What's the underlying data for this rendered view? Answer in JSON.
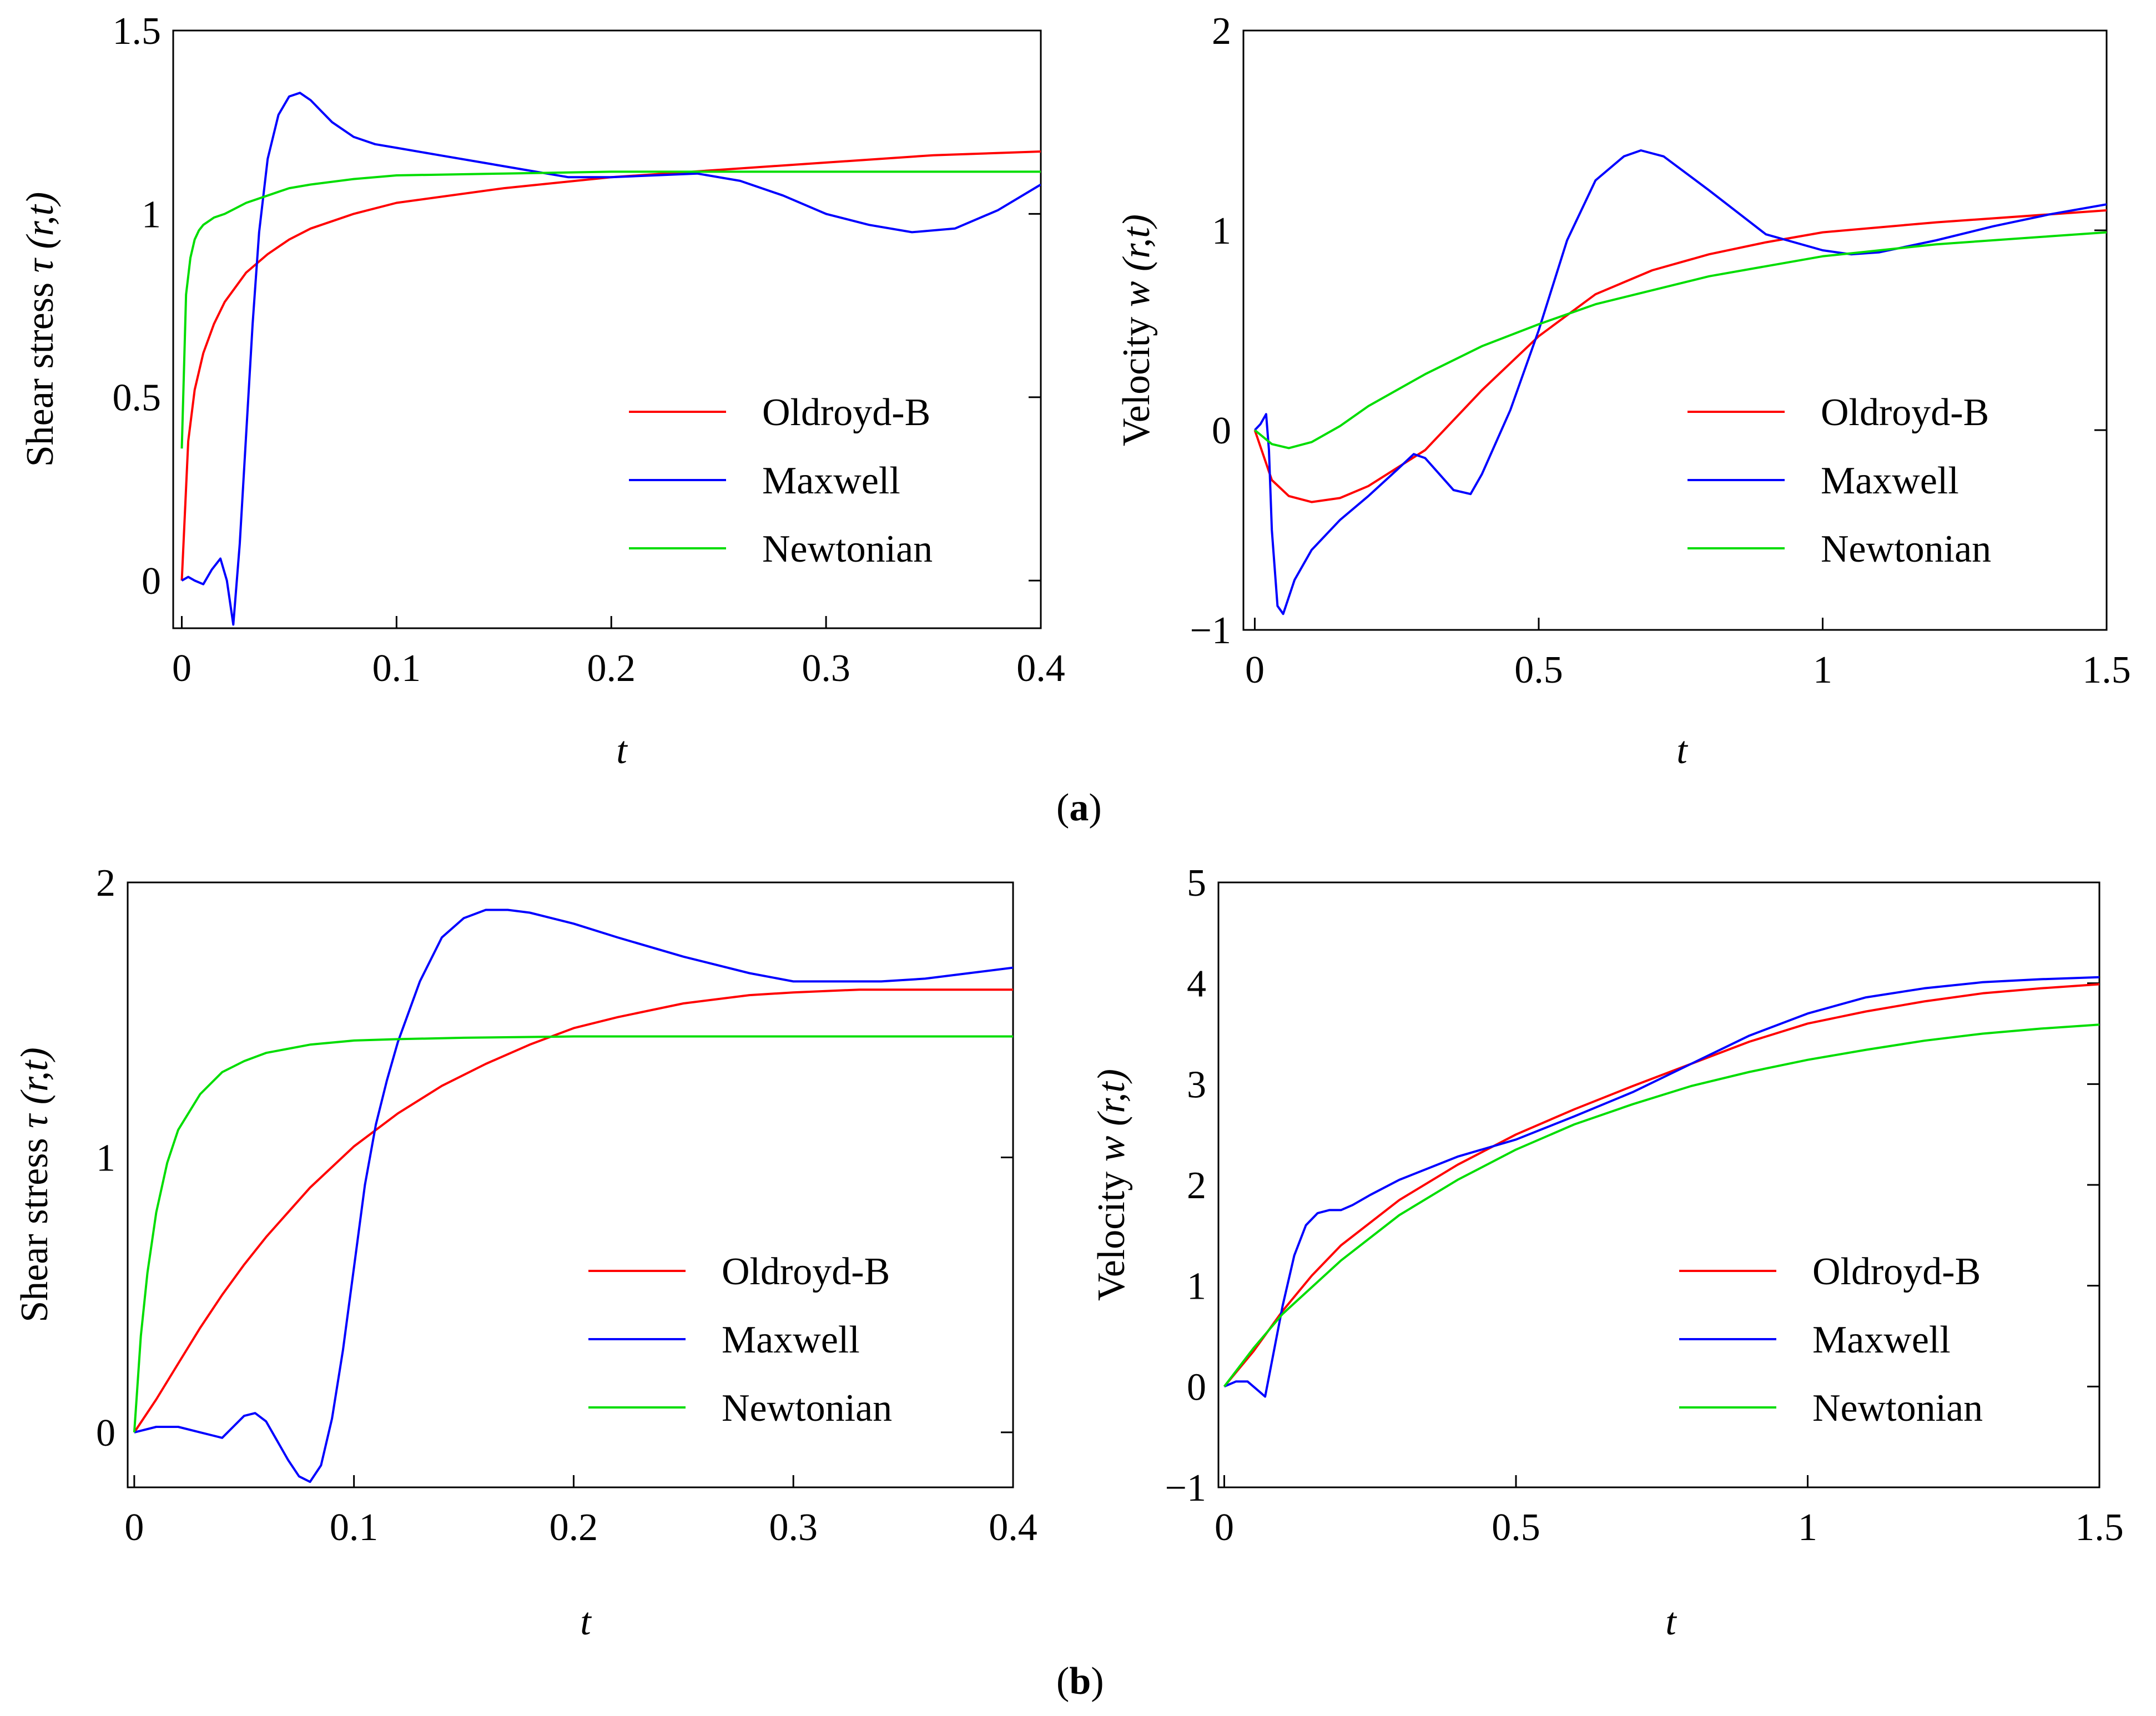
{
  "panel_labels": [
    {
      "open": "(",
      "letter": "a",
      "close": ")"
    },
    {
      "open": "(",
      "letter": "b",
      "close": ")"
    }
  ],
  "colors": {
    "Oldroyd-B": "#ff0000",
    "Maxwell": "#0000ff",
    "Newtonian": "#00dd00"
  },
  "chart_data": [
    {
      "type": "line",
      "panel": "a",
      "ylabel": {
        "text": "Shear stress ",
        "symbol": "τ",
        "args": "(r,t)"
      },
      "xlabel": "t",
      "xlim": [
        -0.004,
        0.4
      ],
      "ylim": [
        -0.13,
        1.5
      ],
      "xticks": [
        0,
        0.1,
        0.2,
        0.3,
        0.4
      ],
      "xtick_labels": [
        "0",
        "0.1",
        "0.2",
        "0.3",
        "0.4"
      ],
      "yticks": [
        0,
        0.5,
        1,
        1.5
      ],
      "ytick_labels": [
        "0",
        "0.5",
        "1",
        "1.5"
      ],
      "grid": false,
      "legend": "lower-right",
      "series": [
        {
          "name": "Oldroyd-B",
          "x": [
            0,
            0.003,
            0.006,
            0.01,
            0.015,
            0.02,
            0.03,
            0.04,
            0.05,
            0.06,
            0.08,
            0.1,
            0.15,
            0.2,
            0.25,
            0.3,
            0.35,
            0.4
          ],
          "y": [
            0,
            0.38,
            0.52,
            0.62,
            0.7,
            0.76,
            0.84,
            0.89,
            0.93,
            0.96,
            1.0,
            1.03,
            1.07,
            1.1,
            1.12,
            1.14,
            1.16,
            1.17
          ]
        },
        {
          "name": "Maxwell",
          "x": [
            0,
            0.003,
            0.006,
            0.01,
            0.014,
            0.018,
            0.021,
            0.024,
            0.027,
            0.03,
            0.033,
            0.036,
            0.04,
            0.045,
            0.05,
            0.055,
            0.06,
            0.065,
            0.07,
            0.08,
            0.09,
            0.1,
            0.12,
            0.14,
            0.16,
            0.18,
            0.2,
            0.22,
            0.24,
            0.26,
            0.28,
            0.3,
            0.32,
            0.34,
            0.36,
            0.38,
            0.4
          ],
          "y": [
            0,
            0.01,
            0.0,
            -0.01,
            0.03,
            0.06,
            0.0,
            -0.12,
            0.1,
            0.4,
            0.7,
            0.95,
            1.15,
            1.27,
            1.32,
            1.33,
            1.31,
            1.28,
            1.25,
            1.21,
            1.19,
            1.18,
            1.16,
            1.14,
            1.12,
            1.1,
            1.1,
            1.105,
            1.11,
            1.09,
            1.05,
            1.0,
            0.97,
            0.95,
            0.96,
            1.01,
            1.08
          ]
        },
        {
          "name": "Newtonian",
          "x": [
            0,
            0.002,
            0.004,
            0.006,
            0.008,
            0.01,
            0.015,
            0.02,
            0.03,
            0.04,
            0.05,
            0.06,
            0.08,
            0.1,
            0.15,
            0.2,
            0.3,
            0.4
          ],
          "y": [
            0.36,
            0.78,
            0.88,
            0.93,
            0.955,
            0.97,
            0.99,
            1.0,
            1.03,
            1.05,
            1.07,
            1.08,
            1.095,
            1.105,
            1.11,
            1.115,
            1.115,
            1.115
          ]
        }
      ]
    },
    {
      "type": "line",
      "panel": "a",
      "ylabel": {
        "text": "Velocity ",
        "symbol": "w",
        "args": "(r,t)"
      },
      "xlabel": "t",
      "xlim": [
        -0.02,
        1.5
      ],
      "ylim": [
        -1,
        2
      ],
      "xticks": [
        0,
        0.5,
        1,
        1.5
      ],
      "xtick_labels": [
        "0",
        "0.5",
        "1",
        "1.5"
      ],
      "yticks": [
        -1,
        0,
        1,
        2
      ],
      "ytick_labels": [
        "−1",
        "0",
        "1",
        "2"
      ],
      "grid": false,
      "legend": "lower-right",
      "series": [
        {
          "name": "Oldroyd-B",
          "x": [
            0,
            0.03,
            0.06,
            0.1,
            0.15,
            0.2,
            0.3,
            0.4,
            0.5,
            0.6,
            0.7,
            0.8,
            0.9,
            1.0,
            1.2,
            1.4,
            1.5
          ],
          "y": [
            0,
            -0.25,
            -0.33,
            -0.36,
            -0.34,
            -0.28,
            -0.1,
            0.2,
            0.47,
            0.68,
            0.8,
            0.88,
            0.94,
            0.99,
            1.04,
            1.08,
            1.1
          ]
        },
        {
          "name": "Maxwell",
          "x": [
            0,
            0.01,
            0.02,
            0.025,
            0.03,
            0.04,
            0.05,
            0.07,
            0.1,
            0.15,
            0.2,
            0.25,
            0.28,
            0.3,
            0.35,
            0.38,
            0.4,
            0.45,
            0.5,
            0.55,
            0.6,
            0.65,
            0.68,
            0.72,
            0.8,
            0.9,
            1.0,
            1.05,
            1.1,
            1.2,
            1.3,
            1.4,
            1.5
          ],
          "y": [
            0,
            0.03,
            0.08,
            -0.1,
            -0.5,
            -0.88,
            -0.92,
            -0.75,
            -0.6,
            -0.45,
            -0.33,
            -0.2,
            -0.12,
            -0.14,
            -0.3,
            -0.32,
            -0.22,
            0.1,
            0.5,
            0.95,
            1.25,
            1.37,
            1.4,
            1.37,
            1.2,
            0.98,
            0.9,
            0.88,
            0.89,
            0.95,
            1.02,
            1.08,
            1.13
          ]
        },
        {
          "name": "Newtonian",
          "x": [
            0,
            0.03,
            0.06,
            0.1,
            0.15,
            0.2,
            0.3,
            0.4,
            0.5,
            0.6,
            0.8,
            1.0,
            1.2,
            1.4,
            1.5
          ],
          "y": [
            0,
            -0.07,
            -0.09,
            -0.06,
            0.02,
            0.12,
            0.28,
            0.42,
            0.53,
            0.63,
            0.77,
            0.87,
            0.93,
            0.97,
            0.99
          ]
        }
      ]
    },
    {
      "type": "line",
      "panel": "b",
      "ylabel": {
        "text": "Shear stress ",
        "symbol": "τ",
        "args": "(r,t)"
      },
      "xlabel": "t",
      "xlim": [
        -0.003,
        0.4
      ],
      "ylim": [
        -0.2,
        2
      ],
      "xticks": [
        0,
        0.1,
        0.2,
        0.3,
        0.4
      ],
      "xtick_labels": [
        "0",
        "0.1",
        "0.2",
        "0.3",
        "0.4"
      ],
      "yticks": [
        0,
        1,
        2
      ],
      "ytick_labels": [
        "0",
        "1",
        "2"
      ],
      "grid": false,
      "legend": "lower-right",
      "series": [
        {
          "name": "Oldroyd-B",
          "x": [
            0,
            0.01,
            0.02,
            0.03,
            0.04,
            0.05,
            0.06,
            0.07,
            0.08,
            0.1,
            0.12,
            0.14,
            0.16,
            0.18,
            0.2,
            0.22,
            0.25,
            0.28,
            0.3,
            0.33,
            0.36,
            0.4
          ],
          "y": [
            0,
            0.12,
            0.25,
            0.38,
            0.5,
            0.61,
            0.71,
            0.8,
            0.89,
            1.04,
            1.16,
            1.26,
            1.34,
            1.41,
            1.47,
            1.51,
            1.56,
            1.59,
            1.6,
            1.61,
            1.61,
            1.61
          ]
        },
        {
          "name": "Maxwell",
          "x": [
            0,
            0.005,
            0.01,
            0.02,
            0.03,
            0.04,
            0.045,
            0.05,
            0.055,
            0.06,
            0.065,
            0.07,
            0.075,
            0.08,
            0.085,
            0.09,
            0.095,
            0.1,
            0.105,
            0.11,
            0.115,
            0.12,
            0.13,
            0.14,
            0.15,
            0.16,
            0.17,
            0.18,
            0.2,
            0.22,
            0.25,
            0.28,
            0.3,
            0.32,
            0.34,
            0.36,
            0.38,
            0.4
          ],
          "y": [
            0,
            0.01,
            0.02,
            0.02,
            0.0,
            -0.02,
            0.02,
            0.06,
            0.07,
            0.04,
            -0.03,
            -0.1,
            -0.16,
            -0.18,
            -0.12,
            0.05,
            0.3,
            0.6,
            0.9,
            1.12,
            1.28,
            1.42,
            1.64,
            1.8,
            1.87,
            1.9,
            1.9,
            1.89,
            1.85,
            1.8,
            1.73,
            1.67,
            1.64,
            1.64,
            1.64,
            1.65,
            1.67,
            1.69
          ]
        },
        {
          "name": "Newtonian",
          "x": [
            0,
            0.003,
            0.006,
            0.01,
            0.015,
            0.02,
            0.03,
            0.04,
            0.05,
            0.06,
            0.08,
            0.1,
            0.12,
            0.15,
            0.2,
            0.25,
            0.3,
            0.4
          ],
          "y": [
            0,
            0.35,
            0.58,
            0.8,
            0.98,
            1.1,
            1.23,
            1.31,
            1.35,
            1.38,
            1.41,
            1.425,
            1.43,
            1.435,
            1.44,
            1.44,
            1.44,
            1.44
          ]
        }
      ]
    },
    {
      "type": "line",
      "panel": "b",
      "ylabel": {
        "text": "Velocity ",
        "symbol": "w",
        "args": "(r,t)"
      },
      "xlabel": "t",
      "xlim": [
        -0.01,
        1.5
      ],
      "ylim": [
        -1,
        5
      ],
      "xticks": [
        0,
        0.5,
        1,
        1.5
      ],
      "xtick_labels": [
        "0",
        "0.5",
        "1",
        "1.5"
      ],
      "yticks": [
        -1,
        0,
        1,
        2,
        3,
        4,
        5
      ],
      "ytick_labels": [
        "−1",
        "0",
        "1",
        "2",
        "3",
        "4",
        "5"
      ],
      "grid": false,
      "legend": "lower-right",
      "series": [
        {
          "name": "Oldroyd-B",
          "x": [
            0,
            0.05,
            0.1,
            0.15,
            0.2,
            0.3,
            0.4,
            0.5,
            0.6,
            0.7,
            0.8,
            0.9,
            1.0,
            1.1,
            1.2,
            1.3,
            1.4,
            1.5
          ],
          "y": [
            0,
            0.35,
            0.75,
            1.1,
            1.4,
            1.85,
            2.2,
            2.5,
            2.75,
            2.98,
            3.2,
            3.42,
            3.6,
            3.72,
            3.82,
            3.9,
            3.95,
            3.99
          ]
        },
        {
          "name": "Maxwell",
          "x": [
            0,
            0.02,
            0.04,
            0.06,
            0.07,
            0.08,
            0.1,
            0.12,
            0.14,
            0.16,
            0.18,
            0.2,
            0.22,
            0.25,
            0.3,
            0.4,
            0.5,
            0.6,
            0.7,
            0.8,
            0.9,
            1.0,
            1.1,
            1.2,
            1.3,
            1.4,
            1.5
          ],
          "y": [
            0,
            0.05,
            0.05,
            -0.05,
            -0.1,
            0.2,
            0.8,
            1.3,
            1.6,
            1.72,
            1.75,
            1.75,
            1.8,
            1.9,
            2.05,
            2.28,
            2.45,
            2.68,
            2.92,
            3.2,
            3.48,
            3.7,
            3.86,
            3.95,
            4.01,
            4.04,
            4.06
          ]
        },
        {
          "name": "Newtonian",
          "x": [
            0,
            0.05,
            0.1,
            0.2,
            0.3,
            0.4,
            0.5,
            0.6,
            0.7,
            0.8,
            0.9,
            1.0,
            1.1,
            1.2,
            1.3,
            1.4,
            1.5
          ],
          "y": [
            0,
            0.38,
            0.72,
            1.25,
            1.7,
            2.05,
            2.35,
            2.6,
            2.8,
            2.98,
            3.12,
            3.24,
            3.34,
            3.43,
            3.5,
            3.55,
            3.59
          ]
        }
      ]
    }
  ]
}
